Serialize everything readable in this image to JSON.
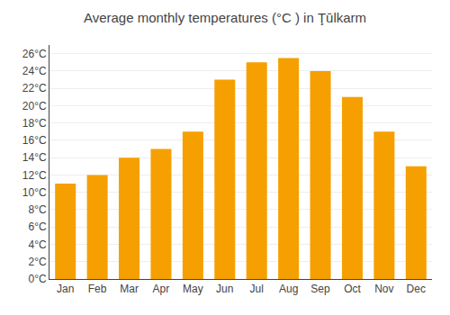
{
  "chart_data": {
    "type": "bar",
    "title": "Average monthly temperatures (°C ) in Ţūlkarm",
    "categories": [
      "Jan",
      "Feb",
      "Mar",
      "Apr",
      "May",
      "Jun",
      "Jul",
      "Aug",
      "Sep",
      "Oct",
      "Nov",
      "Dec"
    ],
    "values": [
      11,
      12,
      14,
      15,
      17,
      23,
      25,
      25.5,
      24,
      21,
      17,
      13
    ],
    "color": "#F5A000",
    "ylim": [
      0,
      27
    ],
    "yticks": [
      {
        "value": 0,
        "label": "0°C"
      },
      {
        "value": 2,
        "label": "2°C"
      },
      {
        "value": 4,
        "label": "4°C"
      },
      {
        "value": 6,
        "label": "6°C"
      },
      {
        "value": 8,
        "label": "8°C"
      },
      {
        "value": 10,
        "label": "10°C"
      },
      {
        "value": 12,
        "label": "12°C"
      },
      {
        "value": 14,
        "label": "14°C"
      },
      {
        "value": 16,
        "label": "16°C"
      },
      {
        "value": 18,
        "label": "18°C"
      },
      {
        "value": 20,
        "label": "20°C"
      },
      {
        "value": 22,
        "label": "22°C"
      },
      {
        "value": 24,
        "label": "24°C"
      },
      {
        "value": 26,
        "label": "26°C"
      }
    ],
    "grid": true
  }
}
